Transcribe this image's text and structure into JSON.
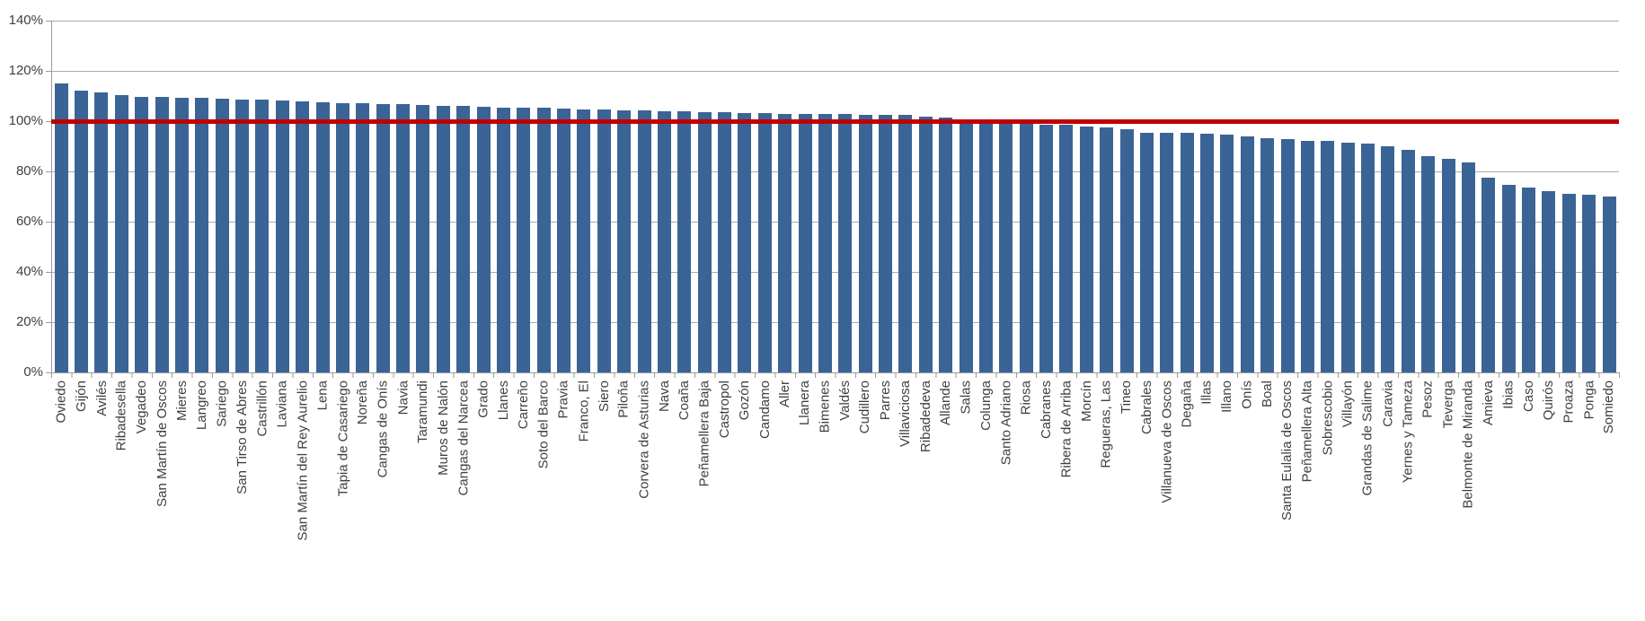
{
  "chart_data": {
    "type": "bar",
    "title": "",
    "xlabel": "",
    "ylabel": "",
    "ylim": [
      0,
      140
    ],
    "ytick_step": 20,
    "ytick_labels": [
      "0%",
      "20%",
      "40%",
      "60%",
      "80%",
      "100%",
      "120%",
      "140%"
    ],
    "grid": true,
    "legend_position": "none",
    "bar_color": "#3b6496",
    "reference_line": {
      "value": 100,
      "color": "#c00000"
    },
    "categories": [
      "Oviedo",
      "Gijón",
      "Avilés",
      "Ribadesella",
      "Vegadeo",
      "San Martín de Oscos",
      "Mieres",
      "Langreo",
      "Sariego",
      "San Tirso de Abres",
      "Castrillón",
      "Laviana",
      "San Martín del Rey Aurelio",
      "Lena",
      "Tapia de Casariego",
      "Noreña",
      "Cangas de Onís",
      "Navia",
      "Taramundi",
      "Muros de Nalón",
      "Cangas del Narcea",
      "Grado",
      "Llanes",
      "Carreño",
      "Soto del Barco",
      "Pravia",
      "Franco, El",
      "Siero",
      "Piloña",
      "Corvera de Asturias",
      "Nava",
      "Coaña",
      "Peñamellera Baja",
      "Castropol",
      "Gozón",
      "Candamo",
      "Aller",
      "Llanera",
      "Bimenes",
      "Valdés",
      "Cudillero",
      "Parres",
      "Villaviciosa",
      "Ribadedeva",
      "Allande",
      "Salas",
      "Colunga",
      "Santo Adriano",
      "Riosa",
      "Cabranes",
      "Ribera de Arriba",
      "Morcín",
      "Regueras, Las",
      "Tineo",
      "Cabrales",
      "Villanueva de Oscos",
      "Degaña",
      "Illas",
      "Illano",
      "Onís",
      "Boal",
      "Santa Eulalia de Oscos",
      "Peñamellera Alta",
      "Sobrescobio",
      "Villayón",
      "Grandas de Salime",
      "Caravia",
      "Yernes y Tameza",
      "Pesoz",
      "Teverga",
      "Belmonte de Miranda",
      "Amieva",
      "Ibias",
      "Caso",
      "Quirós",
      "Proaza",
      "Ponga",
      "Somiedo"
    ],
    "values": [
      115.0,
      112.0,
      111.3,
      110.3,
      109.6,
      109.5,
      109.3,
      109.2,
      109.1,
      108.7,
      108.4,
      108.1,
      107.9,
      107.5,
      107.3,
      107.1,
      106.9,
      106.7,
      106.4,
      106.2,
      106.0,
      105.8,
      105.5,
      105.3,
      105.2,
      104.9,
      104.7,
      104.5,
      104.4,
      104.2,
      104.0,
      103.8,
      103.6,
      103.4,
      103.2,
      103.1,
      103.0,
      102.9,
      102.8,
      102.7,
      102.6,
      102.5,
      102.4,
      101.9,
      101.5,
      100.3,
      100.0,
      99.7,
      99.0,
      98.7,
      98.4,
      97.8,
      97.5,
      96.9,
      95.5,
      95.3,
      95.2,
      95.0,
      94.7,
      93.8,
      93.3,
      92.7,
      92.2,
      92.0,
      91.3,
      91.0,
      90.0,
      88.6,
      86.2,
      85.1,
      83.7,
      77.6,
      74.6,
      73.6,
      72.0,
      71.2,
      70.8,
      70.0
    ]
  }
}
